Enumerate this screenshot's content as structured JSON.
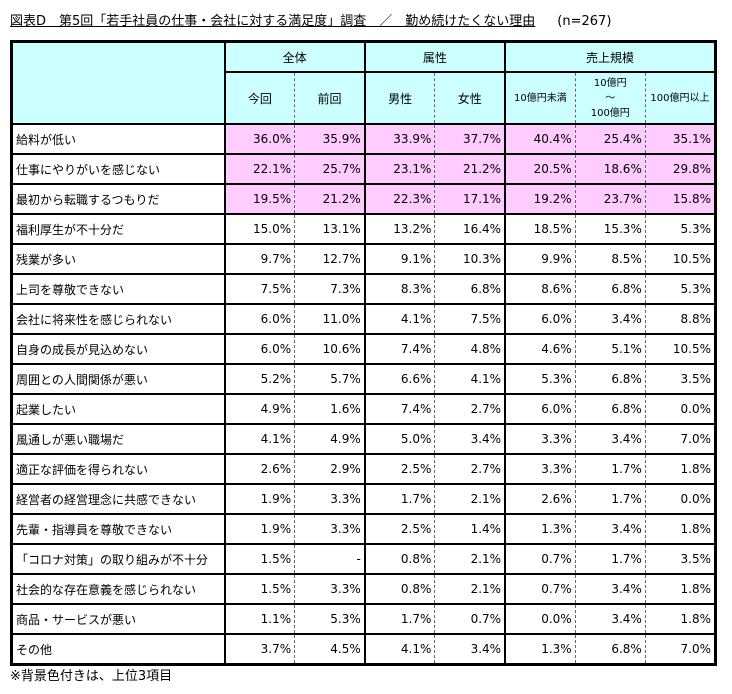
{
  "title": {
    "main": "図表D　第5回「若手社員の仕事・会社に対する満足度」調査　／　勤め続けたくない理由",
    "n": "(n=267)"
  },
  "colors": {
    "header_bg": "#ccffff",
    "highlight_bg": "#ffccff"
  },
  "groups": [
    "全体",
    "属性",
    "売上規模"
  ],
  "columns": [
    "今回",
    "前回",
    "男性",
    "女性",
    "10億円未満",
    "10億円\n～\n100億円",
    "100億円以上"
  ],
  "rows": [
    {
      "label": "給料が低い",
      "values": [
        "36.0%",
        "35.9%",
        "33.9%",
        "37.7%",
        "40.4%",
        "25.4%",
        "35.1%"
      ],
      "highlight": true
    },
    {
      "label": "仕事にやりがいを感じない",
      "values": [
        "22.1%",
        "25.7%",
        "23.1%",
        "21.2%",
        "20.5%",
        "18.6%",
        "29.8%"
      ],
      "highlight": true
    },
    {
      "label": "最初から転職するつもりだ",
      "values": [
        "19.5%",
        "21.2%",
        "22.3%",
        "17.1%",
        "19.2%",
        "23.7%",
        "15.8%"
      ],
      "highlight": true
    },
    {
      "label": "福利厚生が不十分だ",
      "values": [
        "15.0%",
        "13.1%",
        "13.2%",
        "16.4%",
        "18.5%",
        "15.3%",
        "5.3%"
      ]
    },
    {
      "label": "残業が多い",
      "values": [
        "9.7%",
        "12.7%",
        "9.1%",
        "10.3%",
        "9.9%",
        "8.5%",
        "10.5%"
      ]
    },
    {
      "label": "上司を尊敬できない",
      "values": [
        "7.5%",
        "7.3%",
        "8.3%",
        "6.8%",
        "8.6%",
        "6.8%",
        "5.3%"
      ]
    },
    {
      "label": "会社に将来性を感じられない",
      "values": [
        "6.0%",
        "11.0%",
        "4.1%",
        "7.5%",
        "6.0%",
        "3.4%",
        "8.8%"
      ]
    },
    {
      "label": "自身の成長が見込めない",
      "values": [
        "6.0%",
        "10.6%",
        "7.4%",
        "4.8%",
        "4.6%",
        "5.1%",
        "10.5%"
      ]
    },
    {
      "label": "周囲との人間関係が悪い",
      "values": [
        "5.2%",
        "5.7%",
        "6.6%",
        "4.1%",
        "5.3%",
        "6.8%",
        "3.5%"
      ]
    },
    {
      "label": "起業したい",
      "values": [
        "4.9%",
        "1.6%",
        "7.4%",
        "2.7%",
        "6.0%",
        "6.8%",
        "0.0%"
      ]
    },
    {
      "label": "風通しが悪い職場だ",
      "values": [
        "4.1%",
        "4.9%",
        "5.0%",
        "3.4%",
        "3.3%",
        "3.4%",
        "7.0%"
      ]
    },
    {
      "label": "適正な評価を得られない",
      "values": [
        "2.6%",
        "2.9%",
        "2.5%",
        "2.7%",
        "3.3%",
        "1.7%",
        "1.8%"
      ]
    },
    {
      "label": "経営者の経営理念に共感できない",
      "values": [
        "1.9%",
        "3.3%",
        "1.7%",
        "2.1%",
        "2.6%",
        "1.7%",
        "0.0%"
      ]
    },
    {
      "label": "先輩・指導員を尊敬できない",
      "values": [
        "1.9%",
        "3.3%",
        "2.5%",
        "1.4%",
        "1.3%",
        "3.4%",
        "1.8%"
      ]
    },
    {
      "label": "「コロナ対策」の取り組みが不十分",
      "values": [
        "1.5%",
        "-",
        "0.8%",
        "2.1%",
        "0.7%",
        "1.7%",
        "3.5%"
      ]
    },
    {
      "label": "社会的な存在意義を感じられない",
      "values": [
        "1.5%",
        "3.3%",
        "0.8%",
        "2.1%",
        "0.7%",
        "3.4%",
        "1.8%"
      ]
    },
    {
      "label": "商品・サービスが悪い",
      "values": [
        "1.1%",
        "5.3%",
        "1.7%",
        "0.7%",
        "0.0%",
        "3.4%",
        "1.8%"
      ]
    },
    {
      "label": "その他",
      "values": [
        "3.7%",
        "4.5%",
        "4.1%",
        "3.4%",
        "1.3%",
        "6.8%",
        "7.0%"
      ]
    }
  ],
  "note": "※背景色付きは、上位3項目"
}
